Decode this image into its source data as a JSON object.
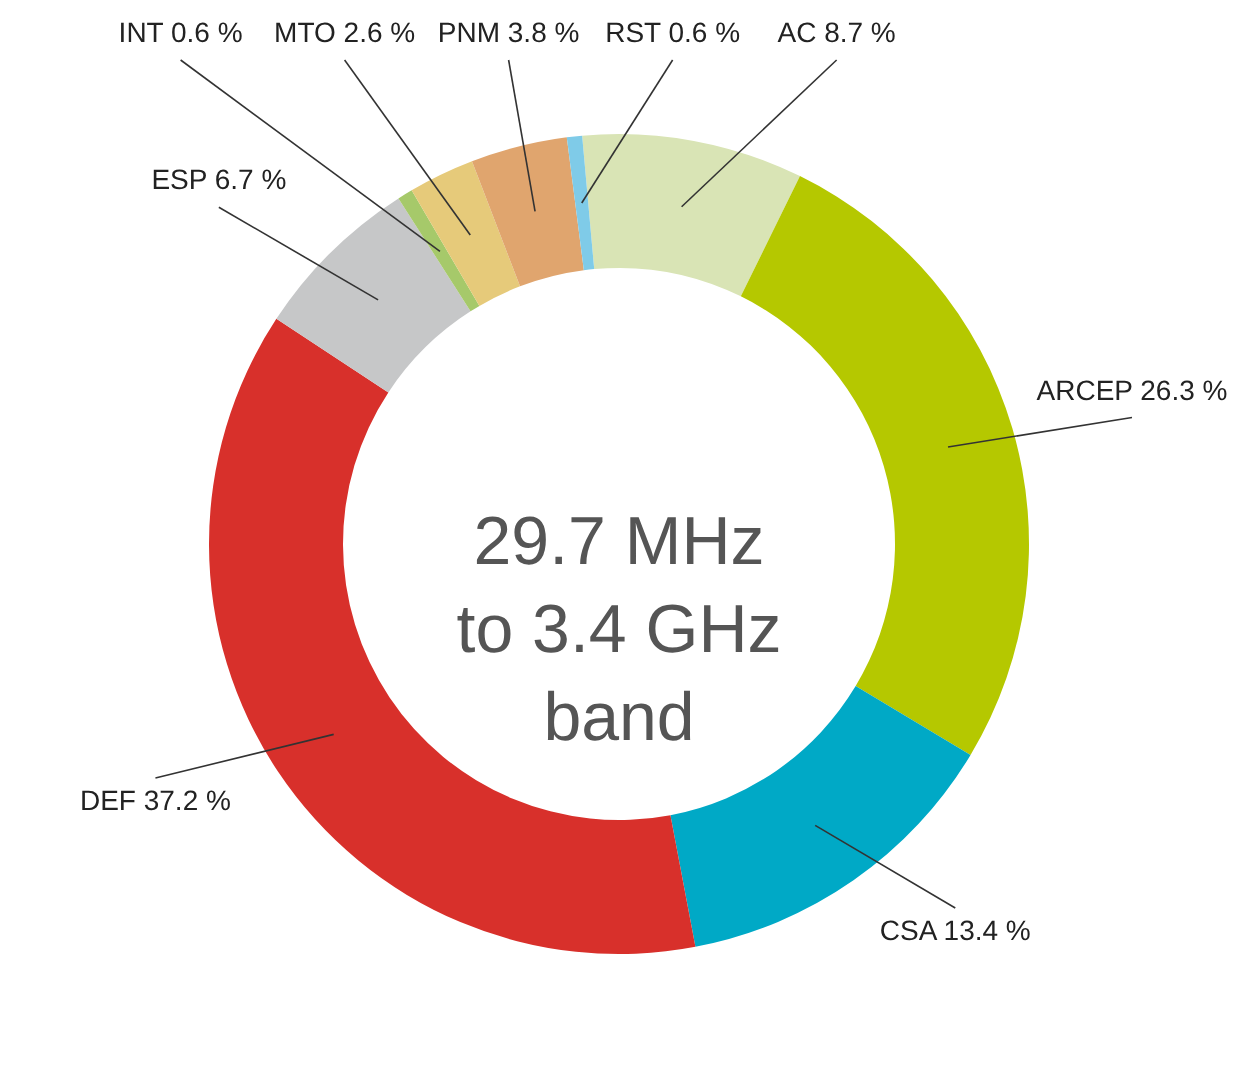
{
  "chart_data": {
    "type": "donut",
    "title": "29.7 MHz\nto 3.4 GHz\nband",
    "categories": [
      "AC",
      "ARCEP",
      "CSA",
      "DEF",
      "ESP",
      "INT",
      "MTO",
      "PNM",
      "RST"
    ],
    "values": [
      8.7,
      26.3,
      13.4,
      37.2,
      6.7,
      0.6,
      2.6,
      3.8,
      0.6
    ],
    "value_labels": [
      "8.7 %",
      "26.3 %",
      "13.4 %",
      "37.2 %",
      "6.7 %",
      "0.6 %",
      "2.6 %",
      "3.8 %",
      "0.6 %"
    ],
    "colors": [
      "#d9e4b5",
      "#b5c800",
      "#00a9c6",
      "#d8302b",
      "#c6c7c8",
      "#a6c96a",
      "#e6ca7a",
      "#e0a56e",
      "#7fcbe8"
    ]
  }
}
